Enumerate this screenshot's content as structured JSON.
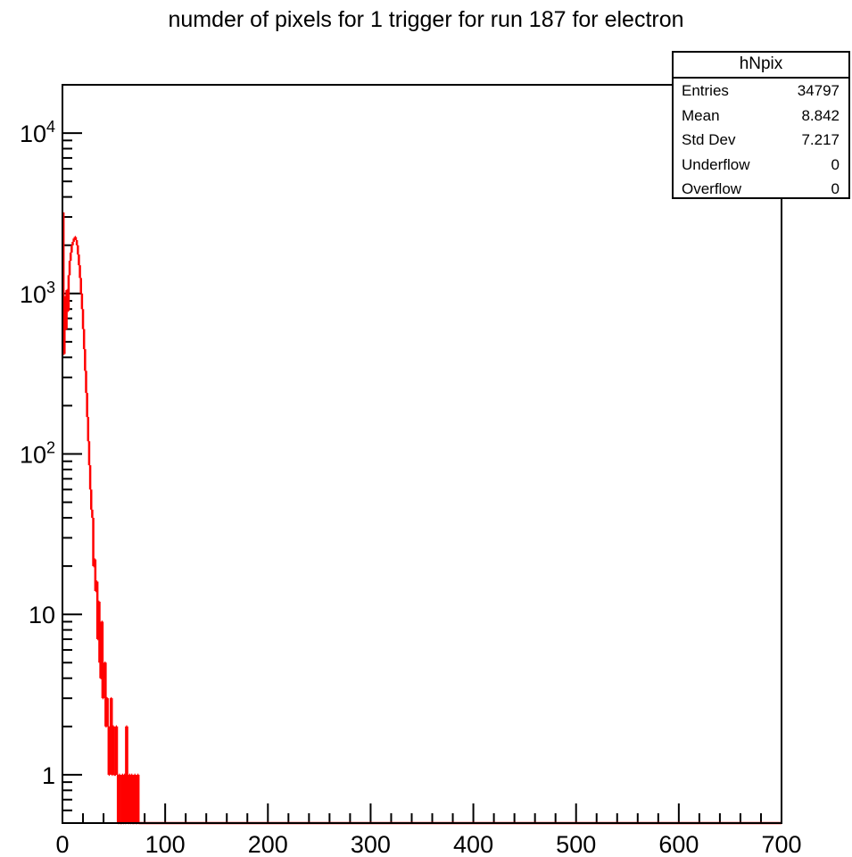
{
  "chart_data": {
    "type": "histogram",
    "title": "numder of pixels for 1 trigger for run 187 for electron",
    "xlabel": "",
    "ylabel": "",
    "xlim": [
      0,
      700
    ],
    "ylim": [
      0.5,
      20000
    ],
    "yscale": "log",
    "x_ticks": [
      "0",
      "100",
      "200",
      "300",
      "400",
      "500",
      "600",
      "700"
    ],
    "y_ticks": [
      {
        "value": 1,
        "base": "1",
        "exp": ""
      },
      {
        "value": 10,
        "base": "10",
        "exp": ""
      },
      {
        "value": 100,
        "base": "10",
        "exp": "2"
      },
      {
        "value": 1000,
        "base": "10",
        "exp": "3"
      },
      {
        "value": 10000,
        "base": "10",
        "exp": "4"
      }
    ],
    "series": [
      {
        "color": "#ff0000",
        "bins": [
          [
            0,
            3200
          ],
          [
            1,
            420
          ],
          [
            2,
            950
          ],
          [
            3,
            600
          ],
          [
            4,
            1050
          ],
          [
            5,
            780
          ],
          [
            6,
            1300
          ],
          [
            7,
            1600
          ],
          [
            8,
            1800
          ],
          [
            9,
            2000
          ],
          [
            10,
            2100
          ],
          [
            11,
            2200
          ],
          [
            12,
            2250
          ],
          [
            13,
            2150
          ],
          [
            14,
            2000
          ],
          [
            15,
            1750
          ],
          [
            16,
            1500
          ],
          [
            17,
            1250
          ],
          [
            18,
            1000
          ],
          [
            19,
            800
          ],
          [
            20,
            600
          ],
          [
            21,
            450
          ],
          [
            22,
            330
          ],
          [
            23,
            240
          ],
          [
            24,
            170
          ],
          [
            25,
            120
          ],
          [
            26,
            85
          ],
          [
            27,
            60
          ],
          [
            28,
            45
          ],
          [
            29,
            40
          ],
          [
            30,
            20
          ],
          [
            31,
            22
          ],
          [
            32,
            14
          ],
          [
            33,
            16
          ],
          [
            34,
            7
          ],
          [
            35,
            12
          ],
          [
            36,
            5
          ],
          [
            37,
            4
          ],
          [
            38,
            9
          ],
          [
            39,
            3
          ],
          [
            40,
            4
          ],
          [
            41,
            5
          ],
          [
            42,
            2
          ],
          [
            43,
            3
          ],
          [
            44,
            2
          ],
          [
            45,
            1
          ],
          [
            46,
            2
          ],
          [
            47,
            3
          ],
          [
            48,
            1
          ],
          [
            49,
            2
          ],
          [
            50,
            1
          ],
          [
            51,
            1
          ],
          [
            52,
            2
          ],
          [
            53,
            1
          ],
          [
            54,
            0
          ],
          [
            55,
            1
          ],
          [
            56,
            0
          ],
          [
            57,
            0
          ],
          [
            58,
            1
          ],
          [
            59,
            0
          ],
          [
            60,
            1
          ],
          [
            61,
            0
          ],
          [
            62,
            2
          ],
          [
            63,
            1
          ],
          [
            64,
            0
          ],
          [
            65,
            1
          ],
          [
            66,
            0
          ],
          [
            67,
            1
          ],
          [
            68,
            0
          ],
          [
            69,
            0
          ],
          [
            70,
            1
          ],
          [
            71,
            0
          ],
          [
            72,
            0
          ],
          [
            73,
            1
          ],
          [
            74,
            0
          ]
        ]
      }
    ],
    "stats_box": {
      "name": "hNpix",
      "rows": [
        {
          "label": "Entries",
          "value": "34797"
        },
        {
          "label": "Mean",
          "value": "8.842"
        },
        {
          "label": "Std Dev",
          "value": "7.217"
        },
        {
          "label": "Underflow",
          "value": "0"
        },
        {
          "label": "Overflow",
          "value": "0"
        }
      ]
    }
  }
}
